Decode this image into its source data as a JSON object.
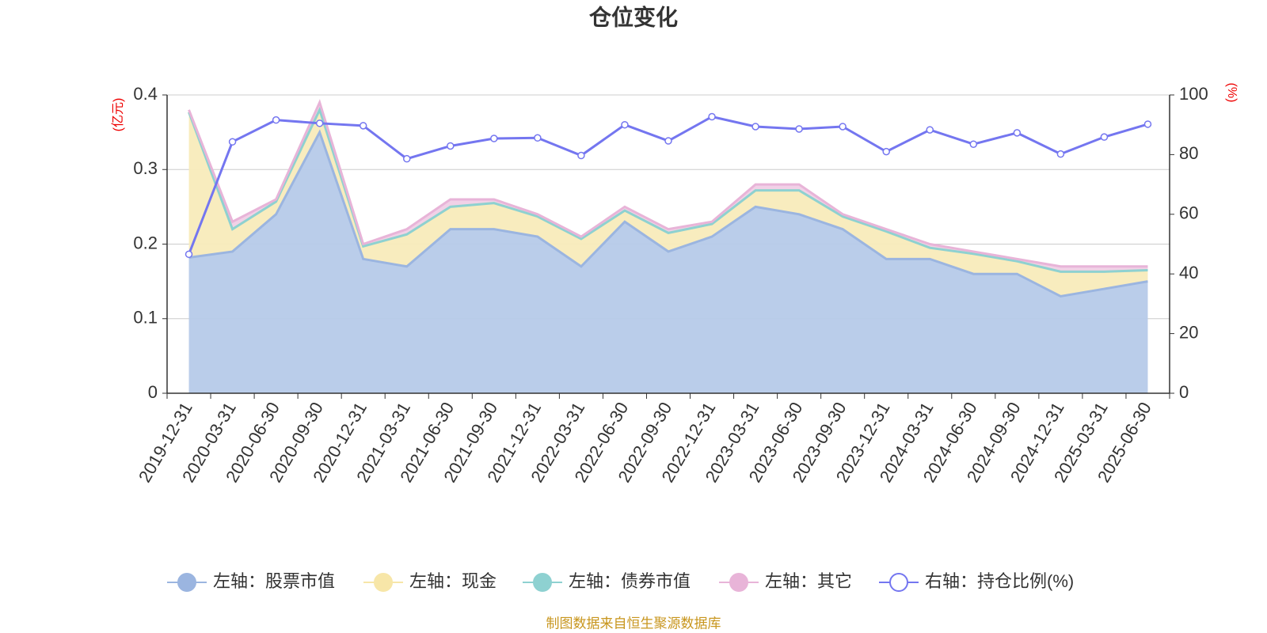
{
  "chart_data": {
    "type": "stacked-area-line",
    "title": "仓位变化",
    "y_label": "(亿元)",
    "y2_label": "(%)",
    "source": "制图数据来自恒生聚源数据库",
    "categories": [
      "2019-12-31",
      "2020-03-31",
      "2020-06-30",
      "2020-09-30",
      "2020-12-31",
      "2021-03-31",
      "2021-06-30",
      "2021-09-30",
      "2021-12-31",
      "2022-03-31",
      "2022-06-30",
      "2022-09-30",
      "2022-12-31",
      "2023-03-31",
      "2023-06-30",
      "2023-09-30",
      "2023-12-31",
      "2024-03-31",
      "2024-06-30",
      "2024-09-30",
      "2024-12-31",
      "2025-03-31",
      "2025-06-30"
    ],
    "ylim": [
      0,
      0.4
    ],
    "yticks": [
      0,
      0.1,
      0.2,
      0.3,
      0.4
    ],
    "y2lim": [
      0,
      100
    ],
    "y2ticks": [
      0,
      20,
      40,
      60,
      80,
      100
    ],
    "grid": true,
    "legend": "bottom",
    "series": [
      {
        "name": "左轴：股票市值",
        "color": "#9bb5e0",
        "values": [
          0.182,
          0.19,
          0.24,
          0.35,
          0.18,
          0.17,
          0.22,
          0.22,
          0.21,
          0.17,
          0.23,
          0.19,
          0.21,
          0.25,
          0.24,
          0.22,
          0.18,
          0.18,
          0.16,
          0.16,
          0.13,
          0.14,
          0.15
        ]
      },
      {
        "name": "左轴：现金",
        "color": "#f7e6a8",
        "values": [
          0.195,
          0.03,
          0.017,
          0.03,
          0.017,
          0.043,
          0.03,
          0.035,
          0.027,
          0.037,
          0.015,
          0.025,
          0.017,
          0.022,
          0.032,
          0.017,
          0.037,
          0.015,
          0.027,
          0.017,
          0.033,
          0.023,
          0.015
        ]
      },
      {
        "name": "左轴：债券市值",
        "color": "#8ed1d1",
        "values": [
          0,
          0,
          0,
          0,
          0,
          0,
          0,
          0,
          0,
          0,
          0,
          0,
          0,
          0,
          0,
          0,
          0,
          0,
          0,
          0,
          0,
          0,
          0
        ]
      },
      {
        "name": "左轴：其它",
        "color": "#e8b4d8",
        "values": [
          0.003,
          0.01,
          0.003,
          0.01,
          0.003,
          0.007,
          0.01,
          0.005,
          0.003,
          0.003,
          0.005,
          0.005,
          0.003,
          0.008,
          0.008,
          0.003,
          0.003,
          0.005,
          0.003,
          0.003,
          0.007,
          0.007,
          0.005
        ]
      },
      {
        "name": "右轴：持仓比例(%)",
        "color": "#7476f0",
        "axis": "y2",
        "values": [
          46.6,
          84.3,
          91.6,
          90.5,
          89.7,
          78.6,
          82.9,
          85.4,
          85.6,
          79.7,
          90.0,
          84.6,
          92.7,
          89.4,
          88.6,
          89.4,
          81.0,
          88.3,
          83.5,
          87.3,
          80.2,
          85.9,
          90.2
        ]
      }
    ]
  }
}
